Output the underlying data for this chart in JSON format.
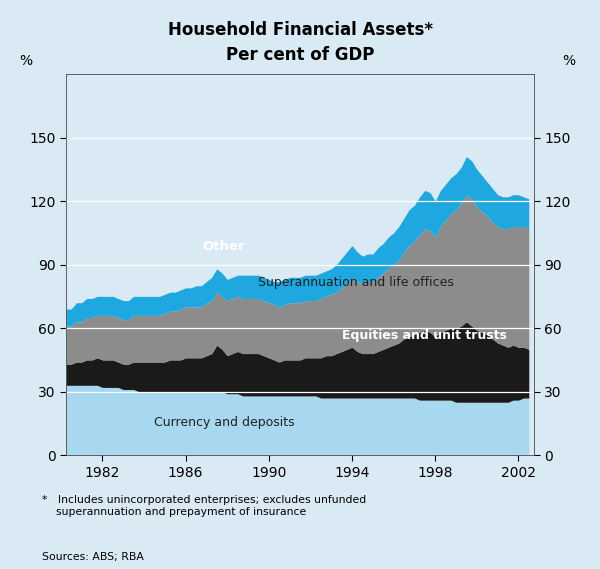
{
  "title_line1": "Household Financial Assets*",
  "title_line2": "Per cent of GDP",
  "ylabel_left": "%",
  "ylabel_right": "%",
  "footnote": "*   Includes unincorporated enterprises; excludes unfunded\n    superannuation and prepayment of insurance",
  "source_note": "Sources: ABS; RBA",
  "background_color": "#daeaf5",
  "plot_background_color": "#daeaf5",
  "yticks": [
    0,
    30,
    60,
    90,
    120,
    150
  ],
  "xticks": [
    1982,
    1986,
    1990,
    1994,
    1998,
    2002
  ],
  "ylim": [
    0,
    180
  ],
  "xlim": [
    1980.25,
    2002.75
  ],
  "years": [
    1980.25,
    1980.5,
    1980.75,
    1981.0,
    1981.25,
    1981.5,
    1981.75,
    1982.0,
    1982.25,
    1982.5,
    1982.75,
    1983.0,
    1983.25,
    1983.5,
    1983.75,
    1984.0,
    1984.25,
    1984.5,
    1984.75,
    1985.0,
    1985.25,
    1985.5,
    1985.75,
    1986.0,
    1986.25,
    1986.5,
    1986.75,
    1987.0,
    1987.25,
    1987.5,
    1987.75,
    1988.0,
    1988.25,
    1988.5,
    1988.75,
    1989.0,
    1989.25,
    1989.5,
    1989.75,
    1990.0,
    1990.25,
    1990.5,
    1990.75,
    1991.0,
    1991.25,
    1991.5,
    1991.75,
    1992.0,
    1992.25,
    1992.5,
    1992.75,
    1993.0,
    1993.25,
    1993.5,
    1993.75,
    1994.0,
    1994.25,
    1994.5,
    1994.75,
    1995.0,
    1995.25,
    1995.5,
    1995.75,
    1996.0,
    1996.25,
    1996.5,
    1996.75,
    1997.0,
    1997.25,
    1997.5,
    1997.75,
    1998.0,
    1998.25,
    1998.5,
    1998.75,
    1999.0,
    1999.25,
    1999.5,
    1999.75,
    2000.0,
    2000.25,
    2000.5,
    2000.75,
    2001.0,
    2001.25,
    2001.5,
    2001.75,
    2002.0,
    2002.25,
    2002.5
  ],
  "currency_deposits": [
    33,
    33,
    33,
    33,
    33,
    33,
    33,
    32,
    32,
    32,
    32,
    31,
    31,
    31,
    30,
    30,
    30,
    30,
    30,
    30,
    30,
    30,
    30,
    30,
    30,
    30,
    30,
    30,
    30,
    30,
    30,
    29,
    29,
    29,
    28,
    28,
    28,
    28,
    28,
    28,
    28,
    28,
    28,
    28,
    28,
    28,
    28,
    28,
    28,
    27,
    27,
    27,
    27,
    27,
    27,
    27,
    27,
    27,
    27,
    27,
    27,
    27,
    27,
    27,
    27,
    27,
    27,
    27,
    26,
    26,
    26,
    26,
    26,
    26,
    26,
    25,
    25,
    25,
    25,
    25,
    25,
    25,
    25,
    25,
    25,
    25,
    26,
    26,
    27,
    27
  ],
  "equities_unit_trusts": [
    10,
    10,
    11,
    11,
    12,
    12,
    13,
    13,
    13,
    13,
    12,
    12,
    12,
    13,
    14,
    14,
    14,
    14,
    14,
    14,
    15,
    15,
    15,
    16,
    16,
    16,
    16,
    17,
    18,
    22,
    20,
    18,
    19,
    20,
    20,
    20,
    20,
    20,
    19,
    18,
    17,
    16,
    17,
    17,
    17,
    17,
    18,
    18,
    18,
    19,
    20,
    20,
    21,
    22,
    23,
    24,
    22,
    21,
    21,
    21,
    22,
    23,
    24,
    25,
    26,
    28,
    29,
    30,
    32,
    33,
    32,
    30,
    32,
    33,
    34,
    35,
    36,
    38,
    36,
    34,
    33,
    32,
    30,
    28,
    27,
    26,
    26,
    25,
    24,
    23
  ],
  "superannuation_life": [
    18,
    18,
    19,
    19,
    20,
    20,
    20,
    21,
    21,
    21,
    21,
    21,
    21,
    22,
    22,
    22,
    22,
    22,
    22,
    23,
    23,
    23,
    24,
    24,
    24,
    24,
    24,
    25,
    25,
    25,
    25,
    26,
    26,
    26,
    26,
    26,
    26,
    26,
    26,
    26,
    26,
    26,
    26,
    27,
    27,
    27,
    27,
    27,
    27,
    28,
    28,
    29,
    29,
    30,
    31,
    32,
    33,
    33,
    34,
    34,
    35,
    36,
    37,
    38,
    39,
    41,
    43,
    44,
    46,
    48,
    48,
    47,
    50,
    52,
    54,
    56,
    58,
    60,
    60,
    58,
    57,
    56,
    55,
    55,
    55,
    56,
    56,
    57,
    57,
    57
  ],
  "other": [
    8,
    8,
    9,
    9,
    9,
    9,
    9,
    9,
    9,
    9,
    9,
    9,
    9,
    9,
    9,
    9,
    9,
    9,
    9,
    9,
    9,
    9,
    9,
    9,
    9,
    10,
    10,
    10,
    11,
    11,
    11,
    10,
    10,
    10,
    11,
    11,
    11,
    11,
    11,
    11,
    11,
    12,
    12,
    12,
    12,
    12,
    12,
    12,
    12,
    12,
    12,
    12,
    13,
    14,
    15,
    16,
    14,
    13,
    13,
    13,
    14,
    14,
    15,
    15,
    16,
    16,
    17,
    17,
    18,
    18,
    18,
    17,
    17,
    17,
    17,
    17,
    17,
    18,
    18,
    18,
    17,
    16,
    16,
    15,
    15,
    15,
    15,
    15,
    14,
    14
  ],
  "colors": {
    "currency_deposits": "#a8d8f0",
    "equities_unit_trusts": "#1a1a1a",
    "superannuation_life": "#8c8c8c",
    "other": "#1fa8df"
  },
  "label_other": "Other",
  "label_super": "Superannuation and life offices",
  "label_equities": "Equities and unit trusts",
  "label_currency": "Currency and deposits"
}
